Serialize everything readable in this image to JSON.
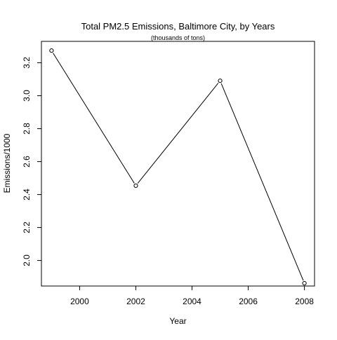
{
  "chart_data": {
    "type": "line",
    "title": "Total PM2.5 Emissions, Baltimore City, by Years",
    "subtitle": "(thousands of tons)",
    "xlabel": "Year",
    "ylabel": "Emissions/1000",
    "x": [
      1999,
      2002,
      2005,
      2008
    ],
    "series": [
      {
        "values": [
          3.274,
          2.454,
          3.091,
          1.862
        ]
      }
    ],
    "xlim": [
      1998.64,
      2008.36
    ],
    "ylim": [
      1.845,
      3.33
    ],
    "xticks": [
      "2000",
      "2002",
      "2004",
      "2006",
      "2008"
    ],
    "xtick_values": [
      2000,
      2002,
      2004,
      2006,
      2008
    ],
    "yticks": [
      "2.0",
      "2.2",
      "2.4",
      "2.6",
      "2.8",
      "3.0",
      "3.2"
    ],
    "ytick_values": [
      2.0,
      2.2,
      2.4,
      2.6,
      2.8,
      3.0,
      3.2
    ],
    "grid": false,
    "legend": "none",
    "colors": {
      "line": "#000000",
      "axis": "#000000",
      "background": "#ffffff"
    },
    "marker": "open-circle"
  }
}
